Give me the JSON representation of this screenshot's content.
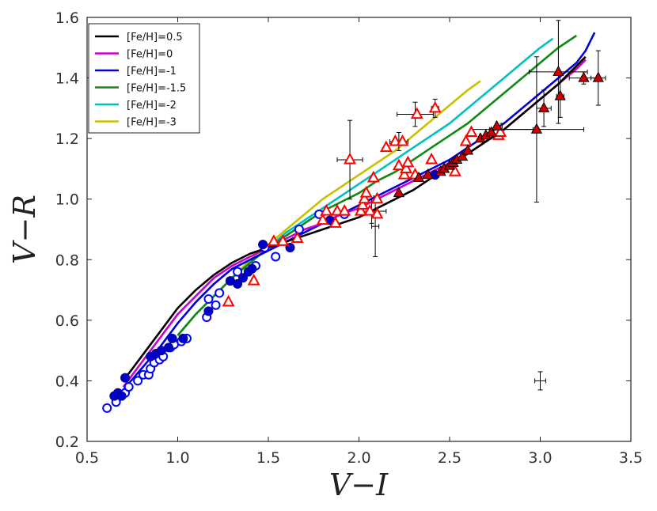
{
  "chart_data": {
    "type": "line+scatter",
    "xlabel": "V−I",
    "ylabel": "V−R",
    "xlim": [
      0.5,
      3.5
    ],
    "ylim": [
      0.2,
      1.6
    ],
    "xticks": [
      0.5,
      1.0,
      1.5,
      2.0,
      2.5,
      3.0,
      3.5
    ],
    "yticks": [
      0.2,
      0.4,
      0.6,
      0.8,
      1.0,
      1.2,
      1.4,
      1.6
    ],
    "xtick_labels": [
      "0.5",
      "1.0",
      "1.5",
      "2.0",
      "2.5",
      "3.0",
      "3.5"
    ],
    "ytick_labels": [
      "0.2",
      "0.4",
      "0.6",
      "0.8",
      "1.0",
      "1.2",
      "1.4",
      "1.6"
    ],
    "legend_position": "top-left",
    "series": [
      {
        "name": "[Fe/H]=0.5",
        "color": "#000000",
        "x": [
          0.7,
          0.8,
          0.9,
          1.0,
          1.1,
          1.2,
          1.3,
          1.4,
          1.5,
          1.6,
          1.7,
          1.8,
          1.9,
          2.0,
          2.1,
          2.2,
          2.3,
          2.4,
          2.5,
          2.6,
          2.7,
          2.8,
          2.9,
          3.0,
          3.1,
          3.2,
          3.25
        ],
        "y": [
          0.4,
          0.48,
          0.56,
          0.64,
          0.7,
          0.75,
          0.79,
          0.82,
          0.84,
          0.86,
          0.88,
          0.9,
          0.92,
          0.94,
          0.97,
          1.0,
          1.03,
          1.07,
          1.11,
          1.15,
          1.19,
          1.23,
          1.28,
          1.33,
          1.38,
          1.44,
          1.47
        ]
      },
      {
        "name": "[Fe/H]=0",
        "color": "#cc00cc",
        "x": [
          0.7,
          0.8,
          0.9,
          1.0,
          1.1,
          1.2,
          1.3,
          1.4,
          1.5,
          1.6,
          1.7,
          1.8,
          1.9,
          2.0,
          2.1,
          2.2,
          2.3,
          2.4,
          2.5,
          2.6,
          2.7,
          2.8,
          2.9,
          3.0,
          3.1,
          3.2,
          3.25
        ],
        "y": [
          0.38,
          0.46,
          0.54,
          0.62,
          0.68,
          0.74,
          0.78,
          0.81,
          0.84,
          0.87,
          0.9,
          0.92,
          0.95,
          0.97,
          1.0,
          1.03,
          1.06,
          1.09,
          1.12,
          1.15,
          1.19,
          1.23,
          1.28,
          1.33,
          1.38,
          1.43,
          1.46
        ]
      },
      {
        "name": "[Fe/H]=-1",
        "color": "#0000dd",
        "x": [
          0.7,
          0.8,
          0.9,
          1.0,
          1.1,
          1.2,
          1.3,
          1.4,
          1.5,
          1.6,
          1.7,
          1.8,
          1.9,
          2.0,
          2.1,
          2.2,
          2.3,
          2.4,
          2.5,
          2.6,
          2.7,
          2.8,
          2.9,
          3.0,
          3.1,
          3.2,
          3.25,
          3.3
        ],
        "y": [
          0.37,
          0.44,
          0.51,
          0.59,
          0.66,
          0.72,
          0.77,
          0.8,
          0.83,
          0.86,
          0.89,
          0.92,
          0.95,
          0.98,
          1.01,
          1.04,
          1.07,
          1.1,
          1.13,
          1.17,
          1.21,
          1.25,
          1.3,
          1.35,
          1.4,
          1.45,
          1.49,
          1.55
        ]
      },
      {
        "name": "[Fe/H]=-1.5",
        "color": "#118811",
        "x": [
          1.0,
          1.1,
          1.2,
          1.3,
          1.4,
          1.5,
          1.6,
          1.7,
          1.8,
          1.9,
          2.0,
          2.1,
          2.2,
          2.3,
          2.4,
          2.5,
          2.6,
          2.7,
          2.8,
          2.9,
          3.0,
          3.1,
          3.2
        ],
        "y": [
          0.55,
          0.62,
          0.68,
          0.74,
          0.79,
          0.84,
          0.88,
          0.92,
          0.96,
          0.99,
          1.02,
          1.06,
          1.09,
          1.13,
          1.17,
          1.21,
          1.25,
          1.3,
          1.35,
          1.4,
          1.45,
          1.5,
          1.54
        ]
      },
      {
        "name": "[Fe/H]=-2",
        "color": "#00c0c0",
        "x": [
          1.0,
          1.1,
          1.2,
          1.3,
          1.4,
          1.5,
          1.6,
          1.7,
          1.8,
          1.9,
          2.0,
          2.1,
          2.2,
          2.3,
          2.4,
          2.5,
          2.6,
          2.7,
          2.8,
          2.9,
          3.0,
          3.07
        ],
        "y": [
          0.55,
          0.62,
          0.68,
          0.74,
          0.79,
          0.84,
          0.89,
          0.93,
          0.97,
          1.01,
          1.05,
          1.09,
          1.13,
          1.17,
          1.21,
          1.25,
          1.3,
          1.35,
          1.4,
          1.45,
          1.5,
          1.53
        ]
      },
      {
        "name": "[Fe/H]=-3",
        "color": "#c8c000",
        "x": [
          1.0,
          1.1,
          1.2,
          1.3,
          1.4,
          1.5,
          1.6,
          1.7,
          1.8,
          1.9,
          2.0,
          2.1,
          2.2,
          2.3,
          2.4,
          2.5,
          2.6,
          2.67
        ],
        "y": [
          0.55,
          0.62,
          0.68,
          0.74,
          0.8,
          0.85,
          0.9,
          0.95,
          1.0,
          1.04,
          1.08,
          1.12,
          1.16,
          1.21,
          1.26,
          1.31,
          1.36,
          1.39
        ]
      }
    ],
    "scatter": {
      "blue_filled": {
        "color": "#0000cc",
        "points": [
          [
            0.65,
            0.35
          ],
          [
            0.67,
            0.36
          ],
          [
            0.69,
            0.35
          ],
          [
            0.71,
            0.41
          ],
          [
            0.85,
            0.48
          ],
          [
            0.88,
            0.49
          ],
          [
            0.91,
            0.5
          ],
          [
            0.95,
            0.51
          ],
          [
            0.97,
            0.54
          ],
          [
            1.03,
            0.54
          ],
          [
            1.17,
            0.63
          ],
          [
            1.29,
            0.73
          ],
          [
            1.33,
            0.72
          ],
          [
            1.36,
            0.74
          ],
          [
            1.39,
            0.76
          ],
          [
            1.41,
            0.77
          ],
          [
            1.47,
            0.85
          ],
          [
            1.62,
            0.84
          ],
          [
            1.84,
            0.93
          ],
          [
            2.42,
            1.08
          ]
        ]
      },
      "blue_open": {
        "color": "#0000ff",
        "points": [
          [
            0.61,
            0.31
          ],
          [
            0.66,
            0.33
          ],
          [
            0.71,
            0.36
          ],
          [
            0.73,
            0.38
          ],
          [
            0.78,
            0.4
          ],
          [
            0.81,
            0.42
          ],
          [
            0.84,
            0.42
          ],
          [
            0.85,
            0.44
          ],
          [
            0.87,
            0.46
          ],
          [
            0.9,
            0.47
          ],
          [
            0.92,
            0.48
          ],
          [
            0.96,
            0.51
          ],
          [
            0.98,
            0.52
          ],
          [
            1.02,
            0.53
          ],
          [
            1.05,
            0.54
          ],
          [
            1.16,
            0.61
          ],
          [
            1.17,
            0.67
          ],
          [
            1.21,
            0.65
          ],
          [
            1.23,
            0.69
          ],
          [
            1.33,
            0.76
          ],
          [
            1.43,
            0.78
          ],
          [
            1.48,
            0.84
          ],
          [
            1.54,
            0.81
          ],
          [
            1.67,
            0.9
          ],
          [
            1.78,
            0.95
          ],
          [
            1.92,
            0.95
          ]
        ]
      },
      "red_open_triangles": {
        "color": "#ff0000",
        "points": [
          [
            1.28,
            0.66
          ],
          [
            1.42,
            0.73
          ],
          [
            1.53,
            0.86
          ],
          [
            1.58,
            0.86
          ],
          [
            1.66,
            0.87
          ],
          [
            1.8,
            0.93
          ],
          [
            1.82,
            0.96
          ],
          [
            1.87,
            0.92
          ],
          [
            1.88,
            0.96
          ],
          [
            1.92,
            0.96
          ],
          [
            1.95,
            1.13
          ],
          [
            2.01,
            0.96
          ],
          [
            2.02,
            0.98
          ],
          [
            2.03,
            1.0
          ],
          [
            2.04,
            1.02
          ],
          [
            2.06,
            0.96
          ],
          [
            2.08,
            1.07
          ],
          [
            2.1,
            0.95
          ],
          [
            2.1,
            1.0
          ],
          [
            2.15,
            1.17
          ],
          [
            2.2,
            1.19
          ],
          [
            2.22,
            1.11
          ],
          [
            2.24,
            1.19
          ],
          [
            2.25,
            1.08
          ],
          [
            2.26,
            1.1
          ],
          [
            2.27,
            1.12
          ],
          [
            2.31,
            1.08
          ],
          [
            2.32,
            1.28
          ],
          [
            2.4,
            1.13
          ],
          [
            2.42,
            1.3
          ],
          [
            2.53,
            1.09
          ],
          [
            2.59,
            1.19
          ],
          [
            2.62,
            1.22
          ],
          [
            2.77,
            1.21
          ],
          [
            2.78,
            1.22
          ]
        ]
      },
      "red_filled_triangles": {
        "color": "#cc0000",
        "points": [
          [
            2.22,
            1.02
          ],
          [
            2.33,
            1.07
          ],
          [
            2.38,
            1.08
          ],
          [
            2.45,
            1.09
          ],
          [
            2.47,
            1.1
          ],
          [
            2.5,
            1.11
          ],
          [
            2.52,
            1.12
          ],
          [
            2.54,
            1.13
          ],
          [
            2.57,
            1.14
          ],
          [
            2.6,
            1.16
          ],
          [
            2.67,
            1.2
          ],
          [
            2.7,
            1.21
          ],
          [
            2.73,
            1.22
          ],
          [
            2.76,
            1.24
          ],
          [
            2.98,
            1.23
          ],
          [
            3.02,
            1.3
          ],
          [
            3.1,
            1.42
          ],
          [
            3.11,
            1.34
          ],
          [
            3.24,
            1.4
          ],
          [
            3.32,
            1.4
          ]
        ]
      },
      "error_bars": [
        [
          1.95,
          1.13,
          0.07,
          0.13
        ],
        [
          2.07,
          0.96,
          0.08,
          0.04
        ],
        [
          2.09,
          0.91,
          0.02,
          0.1
        ],
        [
          2.22,
          1.19,
          0.05,
          0.03
        ],
        [
          2.31,
          1.28,
          0.1,
          0.04
        ],
        [
          2.42,
          1.3,
          0.02,
          0.03
        ],
        [
          2.79,
          1.23,
          0.17,
          0.02
        ],
        [
          2.98,
          1.23,
          0.26,
          0.24
        ],
        [
          3.02,
          1.3,
          0.04,
          0.06
        ],
        [
          3.1,
          1.42,
          0.16,
          0.17
        ],
        [
          3.11,
          1.34,
          0.02,
          0.07
        ],
        [
          3.24,
          1.4,
          0.08,
          0.02
        ],
        [
          3.32,
          1.4,
          0.04,
          0.09
        ],
        [
          3.0,
          0.4,
          0.03,
          0.03
        ]
      ]
    }
  }
}
